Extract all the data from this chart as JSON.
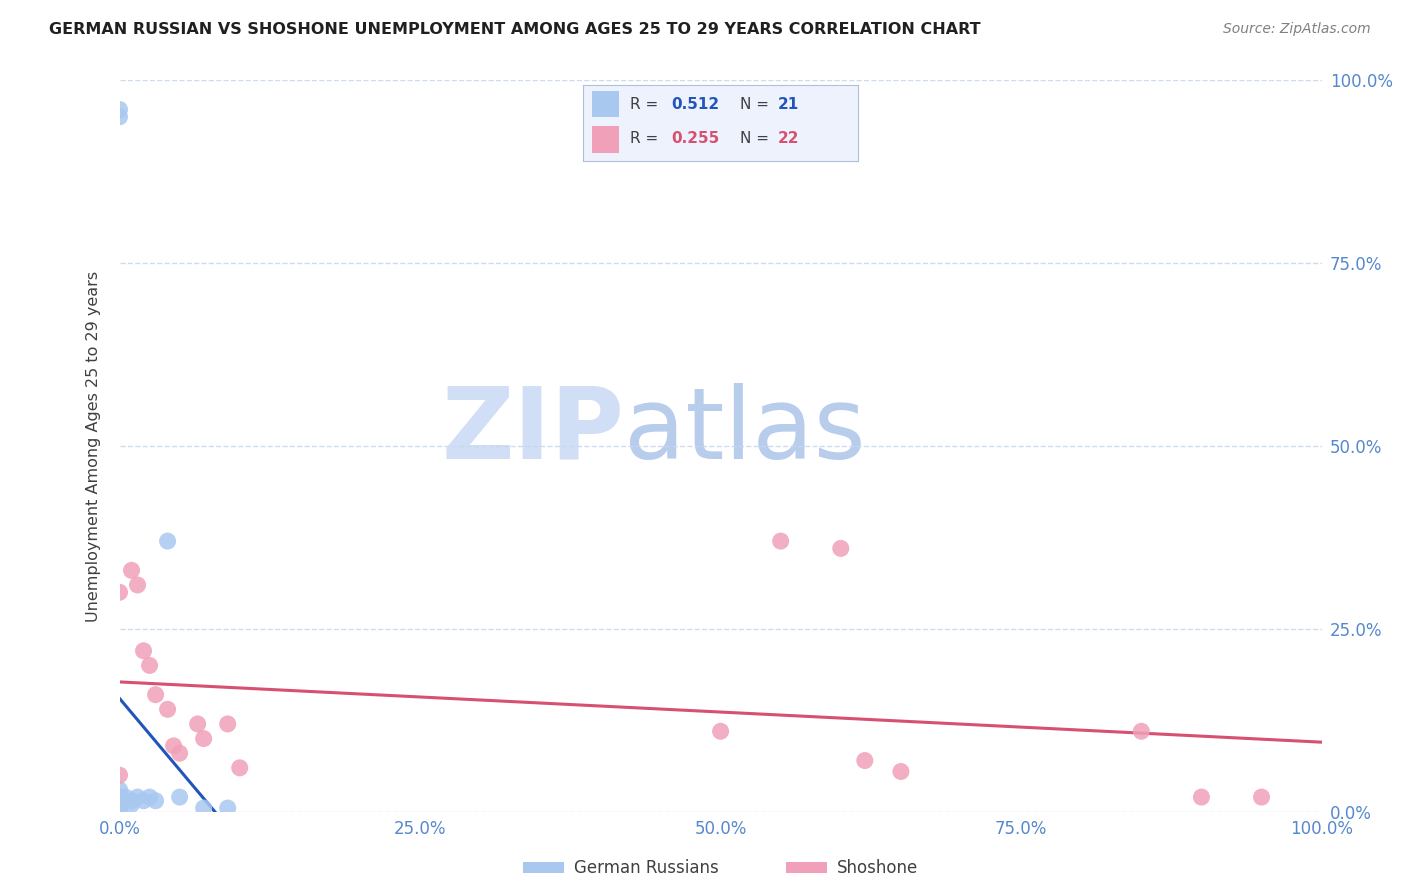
{
  "title": "GERMAN RUSSIAN VS SHOSHONE UNEMPLOYMENT AMONG AGES 25 TO 29 YEARS CORRELATION CHART",
  "source": "Source: ZipAtlas.com",
  "ylabel": "Unemployment Among Ages 25 to 29 years",
  "xticks": [
    0.0,
    0.25,
    0.5,
    0.75,
    1.0
  ],
  "xticklabels": [
    "0.0%",
    "25.0%",
    "50.0%",
    "75.0%",
    "100.0%"
  ],
  "yticks_right": [
    0.0,
    0.25,
    0.5,
    0.75,
    1.0
  ],
  "yticklabels_right": [
    "0.0%",
    "25.0%",
    "50.0%",
    "75.0%",
    "100.0%"
  ],
  "xlim": [
    0.0,
    1.0
  ],
  "ylim": [
    0.0,
    1.0
  ],
  "german_russian_x": [
    0.0,
    0.0,
    0.0,
    0.0,
    0.0,
    0.0,
    0.0,
    0.0,
    0.0,
    0.0,
    0.005,
    0.01,
    0.01,
    0.015,
    0.02,
    0.025,
    0.03,
    0.04,
    0.05,
    0.07,
    0.09
  ],
  "german_russian_y": [
    0.96,
    0.95,
    0.03,
    0.02,
    0.02,
    0.015,
    0.01,
    0.01,
    0.005,
    0.005,
    0.02,
    0.015,
    0.01,
    0.02,
    0.015,
    0.02,
    0.015,
    0.37,
    0.02,
    0.005,
    0.005
  ],
  "shoshone_x": [
    0.0,
    0.0,
    0.01,
    0.015,
    0.02,
    0.025,
    0.03,
    0.04,
    0.045,
    0.05,
    0.065,
    0.07,
    0.09,
    0.1,
    0.5,
    0.55,
    0.6,
    0.62,
    0.65,
    0.85,
    0.9,
    0.95
  ],
  "shoshone_y": [
    0.3,
    0.05,
    0.33,
    0.31,
    0.22,
    0.2,
    0.16,
    0.14,
    0.09,
    0.08,
    0.12,
    0.1,
    0.12,
    0.06,
    0.11,
    0.37,
    0.36,
    0.07,
    0.055,
    0.11,
    0.02,
    0.02
  ],
  "german_r": 0.512,
  "german_n": 21,
  "shoshone_r": 0.255,
  "shoshone_n": 22,
  "german_scatter_color": "#a8c8f0",
  "german_line_color": "#2255bb",
  "shoshone_scatter_color": "#f0a0b8",
  "shoshone_line_color": "#d85070",
  "axis_label_color": "#5588cc",
  "grid_color": "#c8d8ee",
  "watermark_zip_color": "#d0dff5",
  "watermark_atlas_color": "#b8ccec",
  "bg_color": "#ffffff",
  "title_color": "#202020",
  "source_color": "#808080",
  "legend_bg_color": "#eef2fc",
  "legend_border_color": "#b0c0dc"
}
